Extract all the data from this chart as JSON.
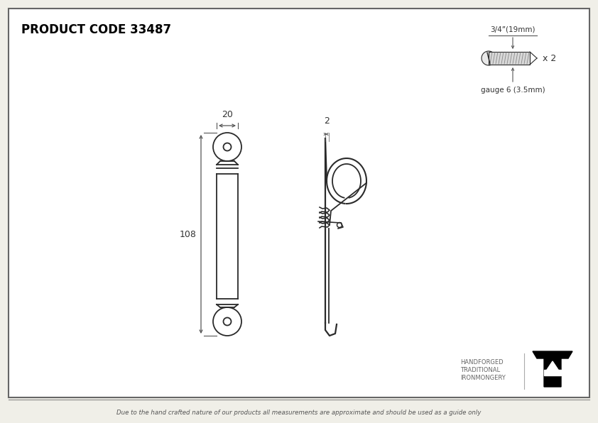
{
  "product_code": "PRODUCT CODE 33487",
  "bg_color": "#f0efe8",
  "inner_bg": "#ffffff",
  "border_color": "#555555",
  "line_color": "#2a2a2a",
  "dim_color": "#555555",
  "footer_text": "Due to the hand crafted nature of our products all measurements are approximate and should be used as a guide only",
  "screw_label_top": "3/4”(19mm)",
  "screw_label_bottom": "gauge 6 (3.5mm)",
  "screw_x2": "x 2",
  "dim_width": "20",
  "dim_height": "108",
  "dim_staple": "2",
  "logo_text1": "HANDFORGED",
  "logo_text2": "TRADITIONAL",
  "logo_text3": "IRONMONGERY"
}
